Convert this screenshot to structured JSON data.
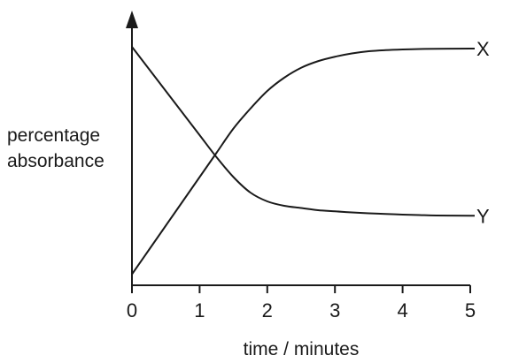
{
  "chart_data": {
    "type": "line",
    "title": "",
    "xlabel": "time / minutes",
    "ylabel_lines": [
      "percentage",
      "absorbance"
    ],
    "xlim": [
      0,
      5
    ],
    "x_ticks": [
      "0",
      "1",
      "2",
      "3",
      "4",
      "5"
    ],
    "y_ticks": [],
    "grid": false,
    "legend": "none",
    "y_axis_arrow": true,
    "series": [
      {
        "name": "X",
        "x": [
          0,
          0.25,
          0.5,
          0.75,
          1,
          1.25,
          1.5,
          1.75,
          2,
          2.25,
          2.5,
          2.75,
          3,
          3.25,
          3.5,
          3.75,
          4,
          4.25,
          4.5,
          5
        ],
        "y": [
          5,
          16,
          27,
          38,
          49,
          60,
          71,
          80,
          88,
          94,
          98.5,
          101.5,
          103.5,
          105,
          106,
          106.5,
          106.8,
          107,
          107.1,
          107.2
        ]
      },
      {
        "name": "Y",
        "x": [
          0,
          0.25,
          0.5,
          0.75,
          1,
          1.25,
          1.5,
          1.75,
          2,
          2.25,
          2.5,
          2.75,
          3,
          3.25,
          3.5,
          3.75,
          4,
          4.25,
          4.5,
          5
        ],
        "y": [
          108,
          98,
          88,
          78,
          68,
          58,
          49,
          42,
          38,
          36,
          35,
          34,
          33.5,
          33,
          32.6,
          32.3,
          32,
          31.8,
          31.6,
          31.5
        ]
      }
    ]
  },
  "colors": {
    "ink": "#1a1a1a",
    "background": "#ffffff"
  }
}
